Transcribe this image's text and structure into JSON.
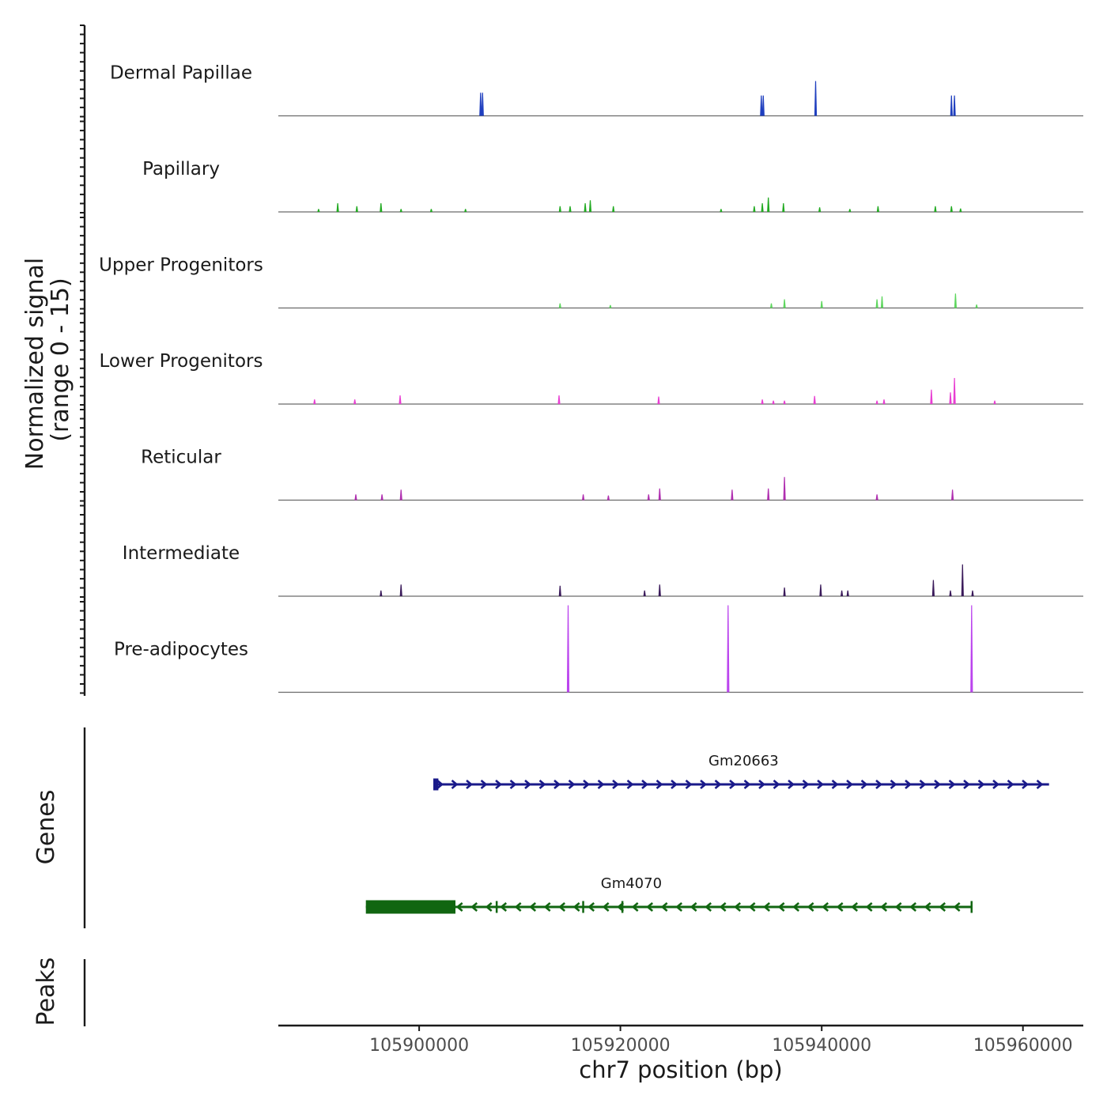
{
  "chart_data": {
    "type": "coverage",
    "chromosome": "chr7",
    "xlabel": "chr7 position (bp)",
    "xlim": [
      105886000,
      105966000
    ],
    "x_ticks": [
      105900000,
      105920000,
      105940000,
      105960000
    ],
    "x_tick_labels": [
      "105900000",
      "105920000",
      "105940000",
      "105960000"
    ],
    "ylabel_line1": "Normalized signal",
    "ylabel_line2": "(range 0 - 15)",
    "ylim": [
      0,
      15
    ],
    "tracks": [
      {
        "name": "Dermal Papillae",
        "color": "#1f3fbf",
        "peaks": [
          [
            105906100,
            4
          ],
          [
            105906300,
            4
          ],
          [
            105934000,
            3.5
          ],
          [
            105934200,
            3.5
          ],
          [
            105939400,
            6
          ],
          [
            105952900,
            3.5
          ],
          [
            105953200,
            3.5
          ]
        ]
      },
      {
        "name": "Papillary",
        "color": "#22aa22",
        "peaks": [
          [
            105890000,
            0.5
          ],
          [
            105891900,
            1.5
          ],
          [
            105893800,
            1
          ],
          [
            105896200,
            1.5
          ],
          [
            105898200,
            0.5
          ],
          [
            105901200,
            0.5
          ],
          [
            105904600,
            0.5
          ],
          [
            105914000,
            1
          ],
          [
            105915000,
            1
          ],
          [
            105916500,
            1.5
          ],
          [
            105917000,
            2
          ],
          [
            105919300,
            1
          ],
          [
            105930000,
            0.5
          ],
          [
            105933300,
            1
          ],
          [
            105934100,
            1.5
          ],
          [
            105934700,
            2.5
          ],
          [
            105936200,
            1.5
          ],
          [
            105939800,
            0.8
          ],
          [
            105942800,
            0.5
          ],
          [
            105945600,
            1
          ],
          [
            105951300,
            1
          ],
          [
            105952900,
            1
          ],
          [
            105953800,
            0.6
          ]
        ]
      },
      {
        "name": "Upper Progenitors",
        "color": "#5ed65e",
        "peaks": [
          [
            105914000,
            0.8
          ],
          [
            105919000,
            0.5
          ],
          [
            105935000,
            0.8
          ],
          [
            105936300,
            1.5
          ],
          [
            105940000,
            1.2
          ],
          [
            105945500,
            1.5
          ],
          [
            105946000,
            2
          ],
          [
            105953300,
            2.5
          ],
          [
            105955400,
            0.6
          ]
        ]
      },
      {
        "name": "Lower Progenitors",
        "color": "#e83fd2",
        "peaks": [
          [
            105889600,
            0.8
          ],
          [
            105893600,
            0.8
          ],
          [
            105898100,
            1.5
          ],
          [
            105913900,
            1.5
          ],
          [
            105923800,
            1.3
          ],
          [
            105934100,
            0.8
          ],
          [
            105935200,
            0.6
          ],
          [
            105936300,
            0.6
          ],
          [
            105939300,
            1.4
          ],
          [
            105945500,
            0.6
          ],
          [
            105946200,
            0.8
          ],
          [
            105950900,
            2.5
          ],
          [
            105952800,
            2
          ],
          [
            105953200,
            4.5
          ],
          [
            105957200,
            0.6
          ]
        ]
      },
      {
        "name": "Reticular",
        "color": "#b02fb0",
        "peaks": [
          [
            105893700,
            1
          ],
          [
            105896300,
            1
          ],
          [
            105898200,
            1.8
          ],
          [
            105916300,
            1
          ],
          [
            105918800,
            0.8
          ],
          [
            105922800,
            1
          ],
          [
            105923900,
            2
          ],
          [
            105931100,
            1.8
          ],
          [
            105934700,
            2
          ],
          [
            105936300,
            4
          ],
          [
            105945500,
            1
          ],
          [
            105953000,
            1.8
          ]
        ]
      },
      {
        "name": "Intermediate",
        "color": "#3a1a5a",
        "peaks": [
          [
            105896200,
            1
          ],
          [
            105898200,
            2
          ],
          [
            105914000,
            1.8
          ],
          [
            105922400,
            1
          ],
          [
            105923900,
            2
          ],
          [
            105936300,
            1.5
          ],
          [
            105939900,
            2
          ],
          [
            105942000,
            1
          ],
          [
            105942600,
            1
          ],
          [
            105951100,
            2.8
          ],
          [
            105952800,
            1
          ],
          [
            105954000,
            5.5
          ],
          [
            105955000,
            1
          ]
        ]
      },
      {
        "name": "Pre-adipocytes",
        "color": "#bb44ee",
        "peaks": [
          [
            105914800,
            15
          ],
          [
            105930700,
            15
          ],
          [
            105954900,
            15
          ]
        ]
      }
    ],
    "genes": [
      {
        "name": "Gm20663",
        "start": 105901400,
        "end": 105962600,
        "strand": "+",
        "color": "#1a1a8a",
        "exons": [
          [
            105901400,
            105901900
          ]
        ]
      },
      {
        "name": "Gm4070",
        "start": 105894700,
        "end": 105955000,
        "strand": "-",
        "color": "#116611",
        "exons": [
          [
            105894700,
            105903600
          ],
          [
            105907600,
            105907800
          ],
          [
            105916200,
            105916300
          ],
          [
            105920100,
            105920300
          ],
          [
            105954800,
            105955000
          ]
        ]
      }
    ],
    "gene_track_label": "Genes",
    "peak_track_label": "Peaks"
  }
}
